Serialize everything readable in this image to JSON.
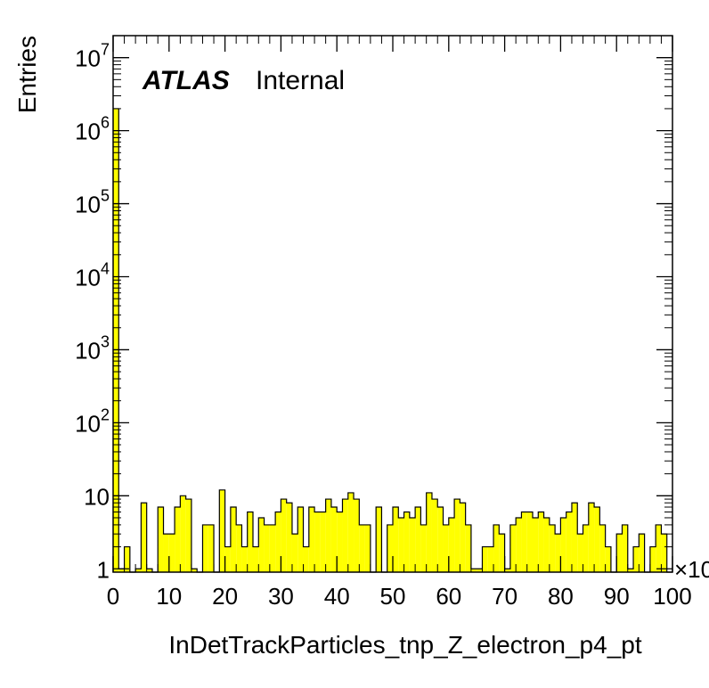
{
  "chart_data": {
    "type": "bar",
    "style": "filled-step-histogram",
    "xlabel": "InDetTrackParticles_tnp_Z_electron_p4_pt",
    "ylabel": "Entries",
    "atlas_label": "ATLAS",
    "atlas_sublabel": "Internal",
    "x_multiplier_label": "×10",
    "xlim": [
      0,
      100
    ],
    "ylim": [
      0.9,
      20000000
    ],
    "yscale": "log",
    "fill_color": "#ffff00",
    "line_color": "#000000",
    "x_ticks": [
      {
        "value": 0,
        "label": "0"
      },
      {
        "value": 10,
        "label": "10"
      },
      {
        "value": 20,
        "label": "20"
      },
      {
        "value": 30,
        "label": "30"
      },
      {
        "value": 40,
        "label": "40"
      },
      {
        "value": 50,
        "label": "50"
      },
      {
        "value": 60,
        "label": "60"
      },
      {
        "value": 70,
        "label": "70"
      },
      {
        "value": 80,
        "label": "80"
      },
      {
        "value": 90,
        "label": "90"
      },
      {
        "value": 100,
        "label": "100"
      }
    ],
    "y_ticks": [
      {
        "value": 1,
        "base": "1",
        "exp": ""
      },
      {
        "value": 10,
        "base": "10",
        "exp": ""
      },
      {
        "value": 100,
        "base": "10",
        "exp": "2"
      },
      {
        "value": 1000,
        "base": "10",
        "exp": "3"
      },
      {
        "value": 10000,
        "base": "10",
        "exp": "4"
      },
      {
        "value": 100000,
        "base": "10",
        "exp": "5"
      },
      {
        "value": 1000000,
        "base": "10",
        "exp": "6"
      },
      {
        "value": 10000000,
        "base": "10",
        "exp": "7"
      }
    ],
    "bin_width": 1,
    "values": [
      2000000,
      1,
      2,
      0,
      1,
      8,
      1,
      0,
      7,
      3,
      3,
      7,
      10,
      9,
      1,
      0,
      4,
      4,
      0,
      12,
      2,
      7,
      4,
      2,
      6,
      2,
      5,
      4,
      4,
      6,
      9,
      8,
      3,
      7,
      2,
      7,
      6,
      6,
      9,
      7,
      6,
      9,
      11,
      9,
      4,
      4,
      0,
      7,
      0,
      4,
      7,
      5,
      6,
      5,
      7,
      4,
      11,
      9,
      7,
      4,
      5,
      9,
      8,
      4,
      1,
      1,
      2,
      2,
      4,
      3,
      1,
      4,
      5,
      6,
      6,
      5,
      6,
      5,
      4,
      3,
      5,
      6,
      8,
      3,
      4,
      8,
      7,
      4,
      2,
      0,
      3,
      4,
      1,
      2,
      3,
      0,
      2,
      4,
      3,
      0
    ]
  }
}
